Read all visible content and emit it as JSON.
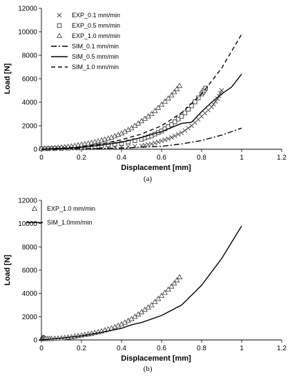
{
  "chart_data": [
    {
      "type": "scatter",
      "panel_label": "(a)",
      "xlabel": "Displacement [mm]",
      "ylabel": "Load [N]",
      "xlim": [
        0,
        1.2
      ],
      "ylim": [
        0,
        12000
      ],
      "xticks": [
        "0",
        "0.2",
        "0.4",
        "0.6",
        "0.8",
        "1",
        "1.2"
      ],
      "yticks": [
        "0",
        "2000",
        "4000",
        "6000",
        "8000",
        "10000",
        "12000"
      ],
      "grid": false,
      "legend_position": "top-left",
      "series": [
        {
          "name": "EXP_0.1 mm/min",
          "marker": "x",
          "line": "none",
          "x": [
            0,
            0.1,
            0.2,
            0.3,
            0.4,
            0.5,
            0.55,
            0.6,
            0.65,
            0.7,
            0.75,
            0.8,
            0.85,
            0.88,
            0.9
          ],
          "y": [
            50,
            60,
            80,
            120,
            180,
            300,
            450,
            700,
            1000,
            1400,
            2000,
            2800,
            3600,
            4300,
            5000
          ]
        },
        {
          "name": "EXP_0.5 mm/min",
          "marker": "square",
          "line": "none",
          "x": [
            0,
            0.1,
            0.2,
            0.3,
            0.4,
            0.5,
            0.55,
            0.6,
            0.65,
            0.7,
            0.75,
            0.8,
            0.82
          ],
          "y": [
            50,
            80,
            150,
            300,
            500,
            850,
            1150,
            1550,
            2100,
            2800,
            3700,
            4700,
            5200
          ]
        },
        {
          "name": "EXP_1.0 mm/min",
          "marker": "triangle",
          "line": "none",
          "x": [
            0,
            0.05,
            0.1,
            0.15,
            0.2,
            0.25,
            0.3,
            0.35,
            0.4,
            0.45,
            0.5,
            0.55,
            0.6,
            0.65,
            0.69
          ],
          "y": [
            50,
            100,
            150,
            250,
            400,
            550,
            750,
            1000,
            1350,
            1800,
            2400,
            3000,
            3800,
            4600,
            5400
          ]
        },
        {
          "name": "SIM_0.1 mm/min",
          "marker": "none",
          "line": "dashdot",
          "x": [
            0,
            0.2,
            0.4,
            0.6,
            0.7,
            0.8,
            0.9,
            1.0
          ],
          "y": [
            0,
            50,
            100,
            250,
            450,
            750,
            1200,
            1800
          ]
        },
        {
          "name": "SIM_0.5 mm/min",
          "marker": "none",
          "line": "solid",
          "x": [
            0,
            0.2,
            0.3,
            0.4,
            0.5,
            0.6,
            0.65,
            0.7,
            0.75,
            0.8,
            0.85,
            0.9,
            0.95,
            1.0
          ],
          "y": [
            0,
            150,
            350,
            600,
            1000,
            1500,
            1850,
            2200,
            2300,
            3200,
            4000,
            4700,
            5300,
            6400
          ]
        },
        {
          "name": "SIM_1.0 mm/min",
          "marker": "none",
          "line": "dashed",
          "x": [
            0,
            0.2,
            0.3,
            0.4,
            0.5,
            0.6,
            0.7,
            0.8,
            0.9,
            1.0
          ],
          "y": [
            0,
            200,
            450,
            800,
            1300,
            2000,
            3100,
            4700,
            6900,
            9800
          ]
        }
      ]
    },
    {
      "type": "scatter",
      "panel_label": "(b)",
      "xlabel": "Displacement [mm]",
      "ylabel": "Load [N]",
      "xlim": [
        0,
        1.2
      ],
      "ylim": [
        0,
        12000
      ],
      "xticks": [
        "0",
        "0.2",
        "0.4",
        "0.6",
        "0.8",
        "1",
        "1.2"
      ],
      "yticks": [
        "0",
        "2000",
        "4000",
        "6000",
        "8000",
        "10000",
        "12000"
      ],
      "grid": false,
      "legend_position": "top-left",
      "series": [
        {
          "name": "EXP_1.0 mm/min",
          "marker": "triangle",
          "line": "none",
          "x": [
            0,
            0.01,
            0.02,
            0.05,
            0.1,
            0.15,
            0.2,
            0.25,
            0.3,
            0.35,
            0.4,
            0.45,
            0.5,
            0.55,
            0.6,
            0.65,
            0.69
          ],
          "y": [
            100,
            200,
            100,
            100,
            150,
            250,
            400,
            550,
            750,
            1000,
            1350,
            1800,
            2400,
            3000,
            3800,
            4600,
            5400
          ]
        },
        {
          "name": "SIM_1.0mm/min",
          "marker": "none",
          "line": "solid",
          "x": [
            0,
            0.1,
            0.2,
            0.3,
            0.4,
            0.45,
            0.5,
            0.6,
            0.7,
            0.8,
            0.9,
            1.0
          ],
          "y": [
            0,
            150,
            350,
            650,
            1000,
            1300,
            1500,
            2100,
            3000,
            4700,
            7000,
            9800
          ]
        }
      ]
    }
  ]
}
